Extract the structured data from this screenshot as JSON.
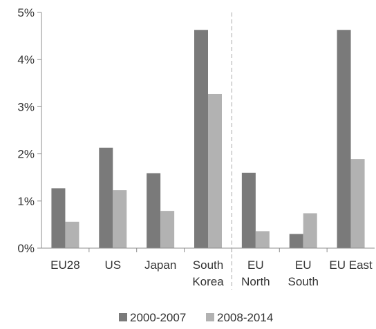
{
  "chart_data": {
    "type": "bar",
    "categories": [
      [
        "EU28"
      ],
      [
        "US"
      ],
      [
        "Japan"
      ],
      [
        "South",
        "Korea"
      ],
      [
        "EU",
        "North"
      ],
      [
        "EU",
        "South"
      ],
      [
        "EU East"
      ]
    ],
    "series": [
      {
        "name": "2000-2007",
        "color": "#7a7a7a",
        "values": [
          1.27,
          2.13,
          1.59,
          4.63,
          1.6,
          0.3,
          4.63
        ]
      },
      {
        "name": "2008-2014",
        "color": "#b2b2b2",
        "values": [
          0.56,
          1.23,
          0.79,
          3.27,
          0.36,
          0.74,
          1.89
        ]
      }
    ],
    "y_ticks": [
      "0%",
      "1%",
      "2%",
      "3%",
      "4%",
      "5%"
    ],
    "ylim": [
      0,
      5
    ],
    "divider_after_category": 4,
    "legend_position": "bottom-center",
    "grid": false
  }
}
